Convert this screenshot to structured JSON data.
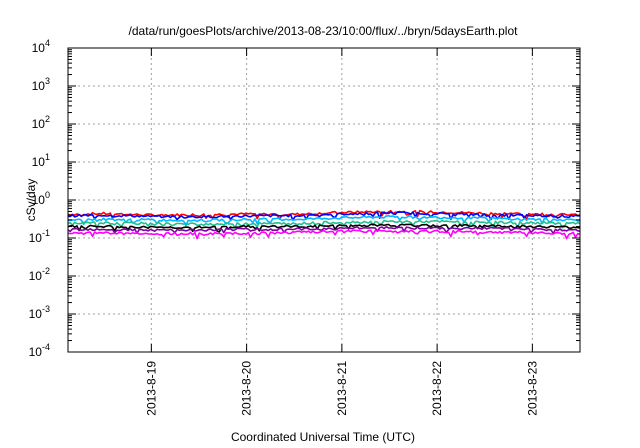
{
  "chart_data": {
    "type": "line",
    "title": "/data/run/goesPlots/archive/2013-08-23/10:00/flux/../bryn/5daysEarth.plot",
    "xlabel": "Coordinated Universal Time (UTC)",
    "ylabel": "cSv/day",
    "yscale": "log",
    "ylim": [
      0.0001,
      10000
    ],
    "xlim": [
      "2013-08-18T03:00",
      "2013-08-23T12:00"
    ],
    "grid": true,
    "yticks": [
      {
        "base": "10",
        "exp": "-4"
      },
      {
        "base": "10",
        "exp": "-3"
      },
      {
        "base": "10",
        "exp": "-2"
      },
      {
        "base": "10",
        "exp": "-1"
      },
      {
        "base": "10",
        "exp": "0"
      },
      {
        "base": "10",
        "exp": "1"
      },
      {
        "base": "10",
        "exp": "2"
      },
      {
        "base": "10",
        "exp": "3"
      },
      {
        "base": "10",
        "exp": "4"
      }
    ],
    "xticks": [
      "2013-8-19",
      "2013-8-20",
      "2013-8-21",
      "2013-8-22",
      "2013-8-23"
    ],
    "x": [
      "2013-08-18T03:00",
      "2013-08-18T12:00",
      "2013-08-19T00:00",
      "2013-08-19T12:00",
      "2013-08-20T00:00",
      "2013-08-20T12:00",
      "2013-08-21T00:00",
      "2013-08-21T12:00",
      "2013-08-22T00:00",
      "2013-08-22T12:00",
      "2013-08-23T00:00",
      "2013-08-23T12:00"
    ],
    "series": [
      {
        "color": "#ff0000",
        "values": [
          0.42,
          0.44,
          0.4,
          0.41,
          0.43,
          0.42,
          0.47,
          0.5,
          0.48,
          0.45,
          0.43,
          0.4
        ]
      },
      {
        "color": "#0000ff",
        "values": [
          0.38,
          0.4,
          0.37,
          0.36,
          0.38,
          0.39,
          0.43,
          0.46,
          0.44,
          0.41,
          0.39,
          0.37
        ]
      },
      {
        "color": "#00b8ff",
        "values": [
          0.3,
          0.31,
          0.3,
          0.29,
          0.31,
          0.31,
          0.34,
          0.36,
          0.35,
          0.33,
          0.31,
          0.3
        ]
      },
      {
        "color": "#20c090",
        "values": [
          0.24,
          0.25,
          0.24,
          0.23,
          0.24,
          0.24,
          0.26,
          0.27,
          0.27,
          0.26,
          0.25,
          0.24
        ]
      },
      {
        "color": "#000000",
        "values": [
          0.2,
          0.2,
          0.19,
          0.19,
          0.2,
          0.2,
          0.21,
          0.22,
          0.21,
          0.21,
          0.2,
          0.19
        ]
      },
      {
        "color": "#8000a0",
        "values": [
          0.17,
          0.17,
          0.16,
          0.16,
          0.17,
          0.17,
          0.18,
          0.19,
          0.18,
          0.18,
          0.17,
          0.16
        ]
      },
      {
        "color": "#ff00ff",
        "values": [
          0.13,
          0.14,
          0.13,
          0.13,
          0.13,
          0.14,
          0.15,
          0.15,
          0.15,
          0.14,
          0.14,
          0.13
        ]
      }
    ]
  }
}
